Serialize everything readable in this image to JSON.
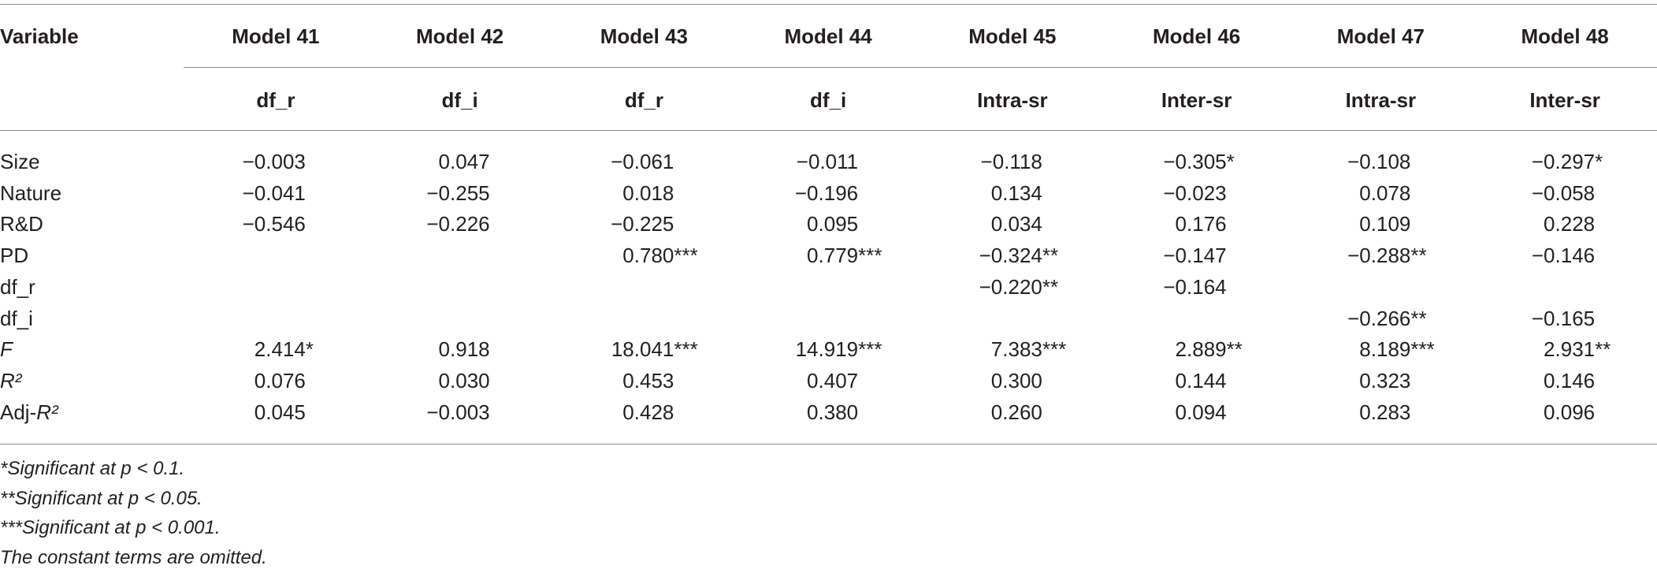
{
  "table": {
    "header_label": "Variable",
    "models": [
      "Model 41",
      "Model 42",
      "Model 43",
      "Model 44",
      "Model 45",
      "Model 46",
      "Model 47",
      "Model 48"
    ],
    "dependents": [
      "df_r",
      "df_i",
      "df_r",
      "df_i",
      "Intra-sr",
      "Inter-sr",
      "Intra-sr",
      "Inter-sr"
    ],
    "rows": [
      {
        "label": [
          {
            "text": "Size",
            "italic": false
          }
        ],
        "cells": [
          "−0.003",
          "0.047",
          "−0.061",
          "−0.011",
          "−0.118",
          "−0.305*",
          "−0.108",
          "−0.297*"
        ]
      },
      {
        "label": [
          {
            "text": "Nature",
            "italic": false
          }
        ],
        "cells": [
          "−0.041",
          "−0.255",
          "0.018",
          "−0.196",
          "0.134",
          "−0.023",
          "0.078",
          "−0.058"
        ]
      },
      {
        "label": [
          {
            "text": "R&D",
            "italic": false
          }
        ],
        "cells": [
          "−0.546",
          "−0.226",
          "−0.225",
          "0.095",
          "0.034",
          "0.176",
          "0.109",
          "0.228"
        ]
      },
      {
        "label": [
          {
            "text": "PD",
            "italic": false
          }
        ],
        "cells": [
          null,
          null,
          "0.780***",
          "0.779***",
          "−0.324**",
          "−0.147",
          "−0.288**",
          "−0.146"
        ]
      },
      {
        "label": [
          {
            "text": "df_r",
            "italic": false
          }
        ],
        "cells": [
          null,
          null,
          null,
          null,
          "−0.220**",
          "−0.164",
          null,
          null
        ]
      },
      {
        "label": [
          {
            "text": "df_i",
            "italic": false
          }
        ],
        "cells": [
          null,
          null,
          null,
          null,
          null,
          null,
          "−0.266**",
          "−0.165"
        ]
      },
      {
        "label": [
          {
            "text": "F",
            "italic": true
          }
        ],
        "cells": [
          "2.414*",
          "0.918",
          "18.041***",
          "14.919***",
          "7.383***",
          "2.889**",
          "8.189***",
          "2.931**"
        ]
      },
      {
        "label": [
          {
            "text": "R²",
            "italic": true
          }
        ],
        "cells": [
          "0.076",
          "0.030",
          "0.453",
          "0.407",
          "0.300",
          "0.144",
          "0.323",
          "0.146"
        ]
      },
      {
        "label": [
          {
            "text": "Adj-",
            "italic": false
          },
          {
            "text": "R²",
            "italic": true
          }
        ],
        "cells": [
          "0.045",
          "−0.003",
          "0.428",
          "0.380",
          "0.260",
          "0.094",
          "0.283",
          "0.096"
        ]
      }
    ],
    "footnotes": [
      "*Significant at p < 0.1.",
      "**Significant at p < 0.05.",
      "***Significant at p < 0.001.",
      "The constant terms are omitted."
    ]
  }
}
